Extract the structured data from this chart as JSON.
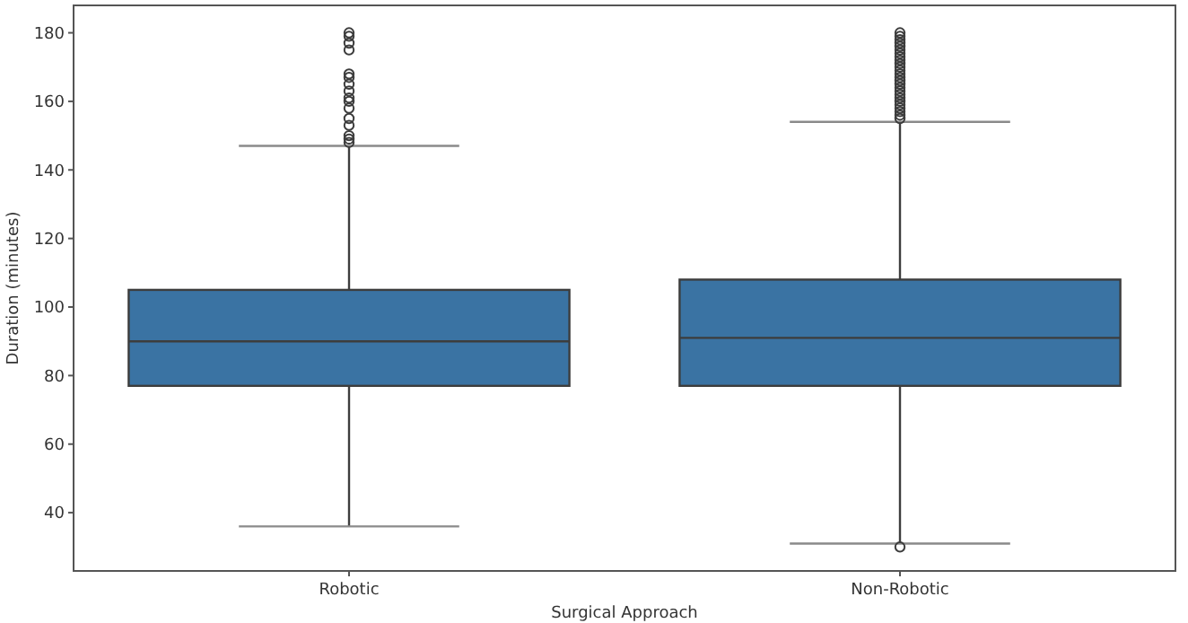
{
  "chart_data": {
    "type": "box",
    "xlabel": "Surgical Approach",
    "ylabel": "Duration (minutes)",
    "categories": [
      "Robotic",
      "Non-Robotic"
    ],
    "color": "#3a73a3",
    "ylim": [
      23,
      188
    ],
    "yticks": [
      40,
      60,
      80,
      100,
      120,
      140,
      160,
      180
    ],
    "grid": false,
    "boxes": [
      {
        "low": 36,
        "q1": 77,
        "median": 90,
        "q3": 105,
        "high": 147,
        "outliers": [
          148,
          149,
          150,
          153,
          155,
          158,
          160,
          161,
          163,
          165,
          167,
          168,
          175,
          177,
          179,
          180
        ]
      },
      {
        "low": 31,
        "q1": 77,
        "median": 91,
        "q3": 108,
        "high": 154,
        "outliers": [
          30,
          155,
          156,
          157,
          158,
          159,
          160,
          161,
          162,
          163,
          164,
          165,
          166,
          167,
          168,
          169,
          170,
          171,
          172,
          173,
          174,
          175,
          176,
          177,
          178,
          179,
          180
        ]
      }
    ]
  }
}
